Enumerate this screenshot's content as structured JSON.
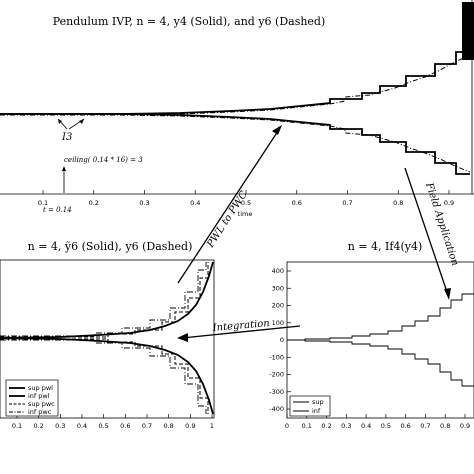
{
  "colors": {
    "ink": "#000000",
    "background": "#ffffff"
  },
  "top_panel": {
    "title": "Pendulum IVP, n = 4, y4 (Solid), and y6 (Dashed)",
    "xlabel": "time",
    "xticks": [
      "0.1",
      "0.2",
      "0.3",
      "0.4",
      "0.5",
      "0.6",
      "0.7",
      "0.8",
      "0.9"
    ],
    "annotations": {
      "i3": "I3",
      "ceiling": "ceiling( 0.14 * 16) = 3",
      "t_value": "t = 0.14"
    }
  },
  "bottom_left_panel": {
    "title": "n = 4, ỹ6 (Solid), y6 (Dashed)",
    "xticks": [
      "0.1",
      "0.2",
      "0.3",
      "0.4",
      "0.5",
      "0.6",
      "0.7",
      "0.8",
      "0.9",
      "1"
    ],
    "legend": [
      "sup pwl",
      "inf pwl",
      "sup pwc",
      "inf pwc"
    ]
  },
  "bottom_right_panel": {
    "title": "n = 4, If4(y4)",
    "xticks": [
      "0",
      "0.1",
      "0.2",
      "0.3",
      "0.4",
      "0.5",
      "0.6",
      "0.7",
      "0.8",
      "0.9"
    ],
    "yticks": [
      "400",
      "300",
      "200",
      "100",
      "0",
      "-100",
      "-200",
      "-300",
      "-400"
    ],
    "legend": [
      "sup",
      "inf"
    ]
  },
  "arrows": {
    "pwl_to_pwc": "PWL to PWC",
    "field_application": "Field Application",
    "integration": "Integration"
  }
}
